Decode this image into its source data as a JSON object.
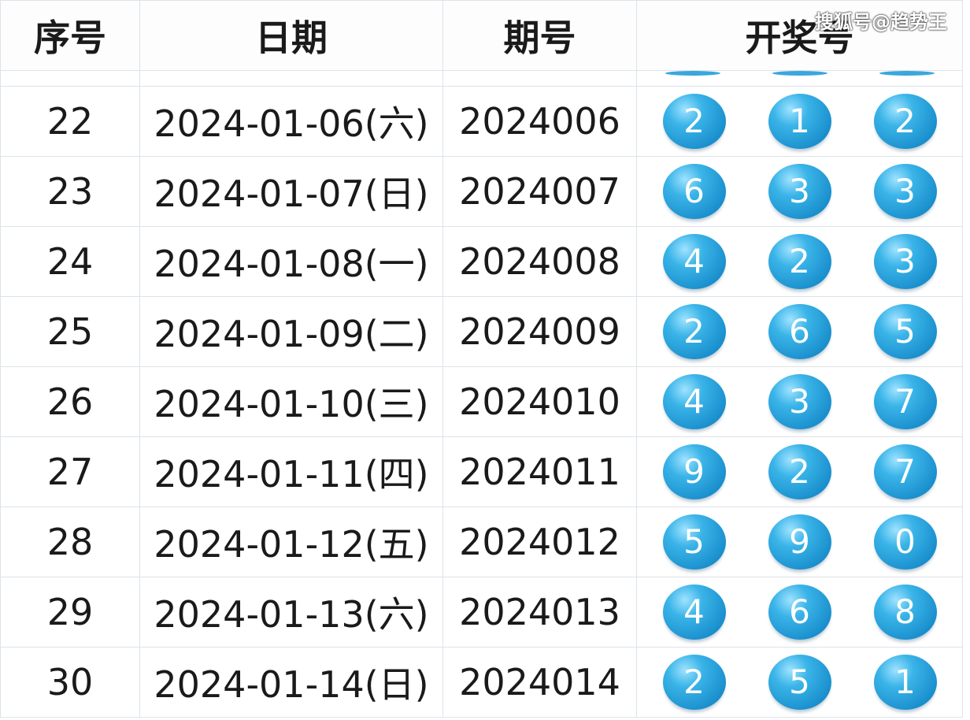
{
  "headers": [
    "序号",
    "日期",
    "期号",
    "开奖号"
  ],
  "watermark": "搜狐号@趋势王",
  "ball_color": "#1a8fcd",
  "rows": [
    {
      "seq": "22",
      "date": "2024-01-06(六)",
      "issue": "2024006",
      "nums": [
        "2",
        "1",
        "2"
      ]
    },
    {
      "seq": "23",
      "date": "2024-01-07(日)",
      "issue": "2024007",
      "nums": [
        "6",
        "3",
        "3"
      ]
    },
    {
      "seq": "24",
      "date": "2024-01-08(一)",
      "issue": "2024008",
      "nums": [
        "4",
        "2",
        "3"
      ]
    },
    {
      "seq": "25",
      "date": "2024-01-09(二)",
      "issue": "2024009",
      "nums": [
        "2",
        "6",
        "5"
      ]
    },
    {
      "seq": "26",
      "date": "2024-01-10(三)",
      "issue": "2024010",
      "nums": [
        "4",
        "3",
        "7"
      ]
    },
    {
      "seq": "27",
      "date": "2024-01-11(四)",
      "issue": "2024011",
      "nums": [
        "9",
        "2",
        "7"
      ]
    },
    {
      "seq": "28",
      "date": "2024-01-12(五)",
      "issue": "2024012",
      "nums": [
        "5",
        "9",
        "0"
      ]
    },
    {
      "seq": "29",
      "date": "2024-01-13(六)",
      "issue": "2024013",
      "nums": [
        "4",
        "6",
        "8"
      ]
    },
    {
      "seq": "30",
      "date": "2024-01-14(日)",
      "issue": "2024014",
      "nums": [
        "2",
        "5",
        "1"
      ]
    }
  ]
}
